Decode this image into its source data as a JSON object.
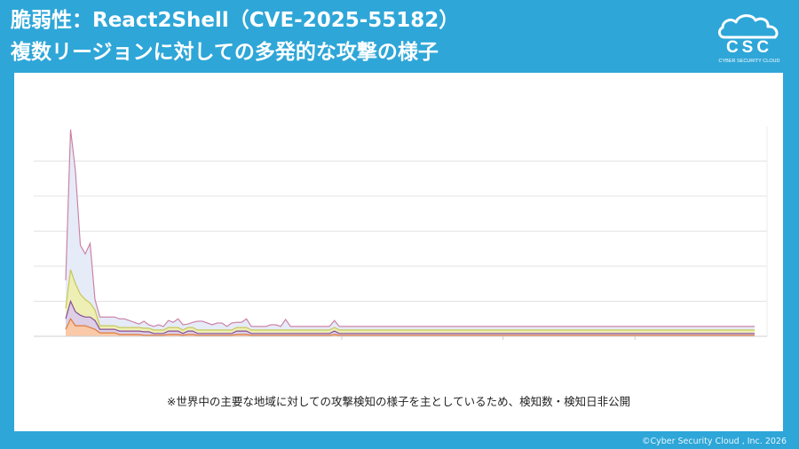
{
  "header": {
    "title_line1": "脆弱性：React2Shell（CVE-2025-55182）",
    "title_line2": "複数リージョンに対しての多発的な攻撃の様子"
  },
  "logo": {
    "icon": "cloud-icon",
    "text": "CSC",
    "subtext": "CYBER SECURITY CLOUD"
  },
  "note": "※世界中の主要な地域に対しての攻撃検知の様子を主としているため、検知数・検知日非公開",
  "copyright": "©Cyber Security Cloud , Inc. 2026",
  "colors": {
    "background": "#2ea6d8",
    "panel": "#ffffff"
  },
  "chart_data": {
    "type": "area",
    "stacked": true,
    "grid": true,
    "legend": "none",
    "title": "",
    "xlabel": "",
    "ylabel": "",
    "tick_labels_hidden": true,
    "x": [
      0,
      1,
      2,
      3,
      4,
      5,
      6,
      7,
      8,
      9,
      10,
      11,
      12,
      13,
      14,
      15,
      16,
      17,
      18,
      19,
      20,
      21,
      22,
      23,
      24,
      25,
      26,
      27,
      28,
      29,
      30,
      31,
      32,
      33,
      34,
      35,
      36,
      37,
      38,
      39,
      40,
      41,
      42,
      43,
      44,
      45,
      46,
      47,
      48,
      49,
      50,
      51,
      52,
      53,
      54,
      55,
      56,
      57,
      58,
      59,
      60,
      61,
      62,
      63,
      64,
      65,
      66,
      67,
      68,
      69,
      70,
      71,
      72,
      73,
      74,
      75,
      76,
      77,
      78,
      79,
      80,
      81,
      82,
      83,
      84,
      85,
      86,
      87,
      88,
      89,
      90,
      91,
      92,
      93,
      94,
      95,
      96,
      97,
      98,
      99,
      100,
      101,
      102,
      103,
      104,
      105,
      106,
      107,
      108,
      109,
      110,
      111,
      112,
      113,
      114,
      115,
      116,
      117,
      118,
      119,
      120,
      121,
      122,
      123,
      124,
      125,
      126,
      127,
      128,
      129,
      130,
      131,
      132,
      133,
      134,
      135,
      136,
      137,
      138,
      139,
      140,
      141
    ],
    "ylim": [
      0,
      60
    ],
    "series": [
      {
        "color": "#f9c9a8",
        "values": [
          2,
          5,
          3,
          3,
          3,
          2.5,
          2,
          1,
          1,
          1,
          1,
          0.5,
          0.5,
          0.5,
          0.5,
          0.5,
          0.3,
          0.3,
          0.3,
          0.3,
          0.3,
          0.5,
          0.5,
          0.5,
          0.3,
          0.5,
          0.5,
          0.3,
          0.3,
          0.3,
          0.3,
          0.3,
          0.3,
          0.3,
          0.3,
          0.5,
          0.5,
          0.5,
          0.3,
          0.3,
          0.3,
          0.3,
          0.3,
          0.3,
          0.3,
          0.3,
          0.3,
          0.3,
          0.3,
          0.3,
          0.3,
          0.3,
          0.3,
          0.3,
          0.3,
          0.5,
          0.3,
          0.3,
          0.3,
          0.3,
          0.3,
          0.3,
          0.3,
          0.3,
          0.3,
          0.3,
          0.3,
          0.3,
          0.3,
          0.3,
          0.3,
          0.3,
          0.3,
          0.3,
          0.3,
          0.3,
          0.3,
          0.3,
          0.3,
          0.3,
          0.3,
          0.3,
          0.3,
          0.3,
          0.3,
          0.3,
          0.3,
          0.3,
          0.3,
          0.3,
          0.3,
          0.3,
          0.3,
          0.3,
          0.3,
          0.3,
          0.3,
          0.3,
          0.3,
          0.3,
          0.3,
          0.3,
          0.3,
          0.3,
          0.3,
          0.3,
          0.3,
          0.3,
          0.3,
          0.3,
          0.3,
          0.3,
          0.3,
          0.3,
          0.3,
          0.3,
          0.3,
          0.3,
          0.3,
          0.3,
          0.3,
          0.3,
          0.3,
          0.3,
          0.3,
          0.3,
          0.3,
          0.3,
          0.3,
          0.3,
          0.3,
          0.3,
          0.3,
          0.3,
          0.3,
          0.3,
          0.3,
          0.3,
          0.3,
          0.3,
          0.3,
          0.3
        ]
      },
      {
        "color": "#dccfe6",
        "values": [
          3,
          5,
          4,
          3,
          2.5,
          3,
          2.5,
          1,
          1,
          1,
          1,
          1,
          1,
          1,
          1,
          1,
          1,
          1,
          0.5,
          0.5,
          0.5,
          1,
          1,
          1,
          0.5,
          1,
          1,
          0.5,
          0.5,
          0.5,
          0.5,
          0.5,
          0.5,
          0.5,
          0.5,
          1,
          1,
          1,
          0.5,
          0.5,
          0.5,
          0.5,
          0.5,
          0.5,
          0.5,
          0.5,
          0.5,
          0.5,
          0.5,
          0.5,
          0.5,
          0.5,
          0.5,
          0.5,
          0.5,
          1,
          0.5,
          0.5,
          0.5,
          0.5,
          0.5,
          0.5,
          0.5,
          0.5,
          0.5,
          0.5,
          0.5,
          0.5,
          0.5,
          0.5,
          0.5,
          0.5,
          0.5,
          0.5,
          0.5,
          0.5,
          0.5,
          0.5,
          0.5,
          0.5,
          0.5,
          0.5,
          0.5,
          0.5,
          0.5,
          0.5,
          0.5,
          0.5,
          0.5,
          0.5,
          0.5,
          0.5,
          0.5,
          0.5,
          0.5,
          0.5,
          0.5,
          0.5,
          0.5,
          0.5,
          0.5,
          0.5,
          0.5,
          0.5,
          0.5,
          0.5,
          0.5,
          0.5,
          0.5,
          0.5,
          0.5,
          0.5,
          0.5,
          0.5,
          0.5,
          0.5,
          0.5,
          0.5,
          0.5,
          0.5,
          0.5,
          0.5,
          0.5,
          0.5,
          0.5,
          0.5,
          0.5,
          0.5,
          0.5,
          0.5,
          0.5,
          0.5,
          0.5,
          0.5,
          0.5,
          0.5,
          0.5,
          0.5,
          0.5,
          0.5,
          0.5,
          0.5
        ]
      },
      {
        "color": "#eeefb4",
        "values": [
          3,
          9,
          8,
          6,
          5,
          4,
          3,
          1,
          1,
          1,
          1,
          1,
          1,
          1,
          1,
          1,
          1,
          1,
          1,
          1,
          1,
          1,
          1,
          1,
          1,
          1,
          1,
          1,
          1,
          1,
          1,
          1,
          1,
          1,
          1,
          1,
          1,
          1,
          1,
          1,
          1,
          1,
          1,
          1,
          1,
          1,
          1,
          1,
          1,
          1,
          1,
          1,
          1,
          1,
          1,
          1,
          1,
          1,
          1,
          1,
          1,
          1,
          1,
          1,
          1,
          1,
          1,
          1,
          1,
          1,
          1,
          1,
          1,
          1,
          1,
          1,
          1,
          1,
          1,
          1,
          1,
          1,
          1,
          1,
          1,
          1,
          1,
          1,
          1,
          1,
          1,
          1,
          1,
          1,
          1,
          1,
          1,
          1,
          1,
          1,
          1,
          1,
          1,
          1,
          1,
          1,
          1,
          1,
          1,
          1,
          1,
          1,
          1,
          1,
          1,
          1,
          1,
          1,
          1,
          1,
          1,
          1,
          1,
          1,
          1,
          1,
          1,
          1,
          1,
          1,
          1,
          1,
          1,
          1,
          1,
          1,
          1,
          1,
          1,
          1,
          1,
          1
        ]
      },
      {
        "color": "#e6ebf8",
        "values": [
          8,
          40,
          32,
          14,
          13,
          17,
          3,
          2.5,
          2.5,
          2.5,
          2.5,
          2.5,
          2.5,
          2,
          1.5,
          1,
          2,
          1,
          1,
          1.5,
          1,
          2,
          1.5,
          2.5,
          1.5,
          1,
          1.5,
          2.5,
          2.5,
          2,
          1.5,
          2,
          2,
          1,
          2,
          1.5,
          1.5,
          2.5,
          1,
          1,
          1,
          1,
          1.5,
          1.5,
          1,
          3,
          1,
          1,
          1,
          1,
          1,
          1,
          1,
          1,
          1,
          2,
          1,
          1,
          1,
          1,
          1,
          1,
          1,
          1,
          1,
          1,
          1,
          1,
          1,
          1,
          1,
          1,
          1,
          1,
          1,
          1,
          1,
          1,
          1,
          1,
          1,
          1,
          1,
          1,
          1,
          1,
          1,
          1,
          1,
          1,
          1,
          1,
          1,
          1,
          1,
          1,
          1,
          1,
          1,
          1,
          1,
          1,
          1,
          1,
          1,
          1,
          1,
          1,
          1,
          1,
          1,
          1,
          1,
          1,
          1,
          1,
          1,
          1,
          1,
          1,
          1,
          1,
          1,
          1,
          1,
          1,
          1,
          1,
          1,
          1,
          1,
          1,
          1,
          1,
          1,
          1,
          1,
          1,
          1,
          1,
          1,
          1
        ]
      }
    ]
  }
}
